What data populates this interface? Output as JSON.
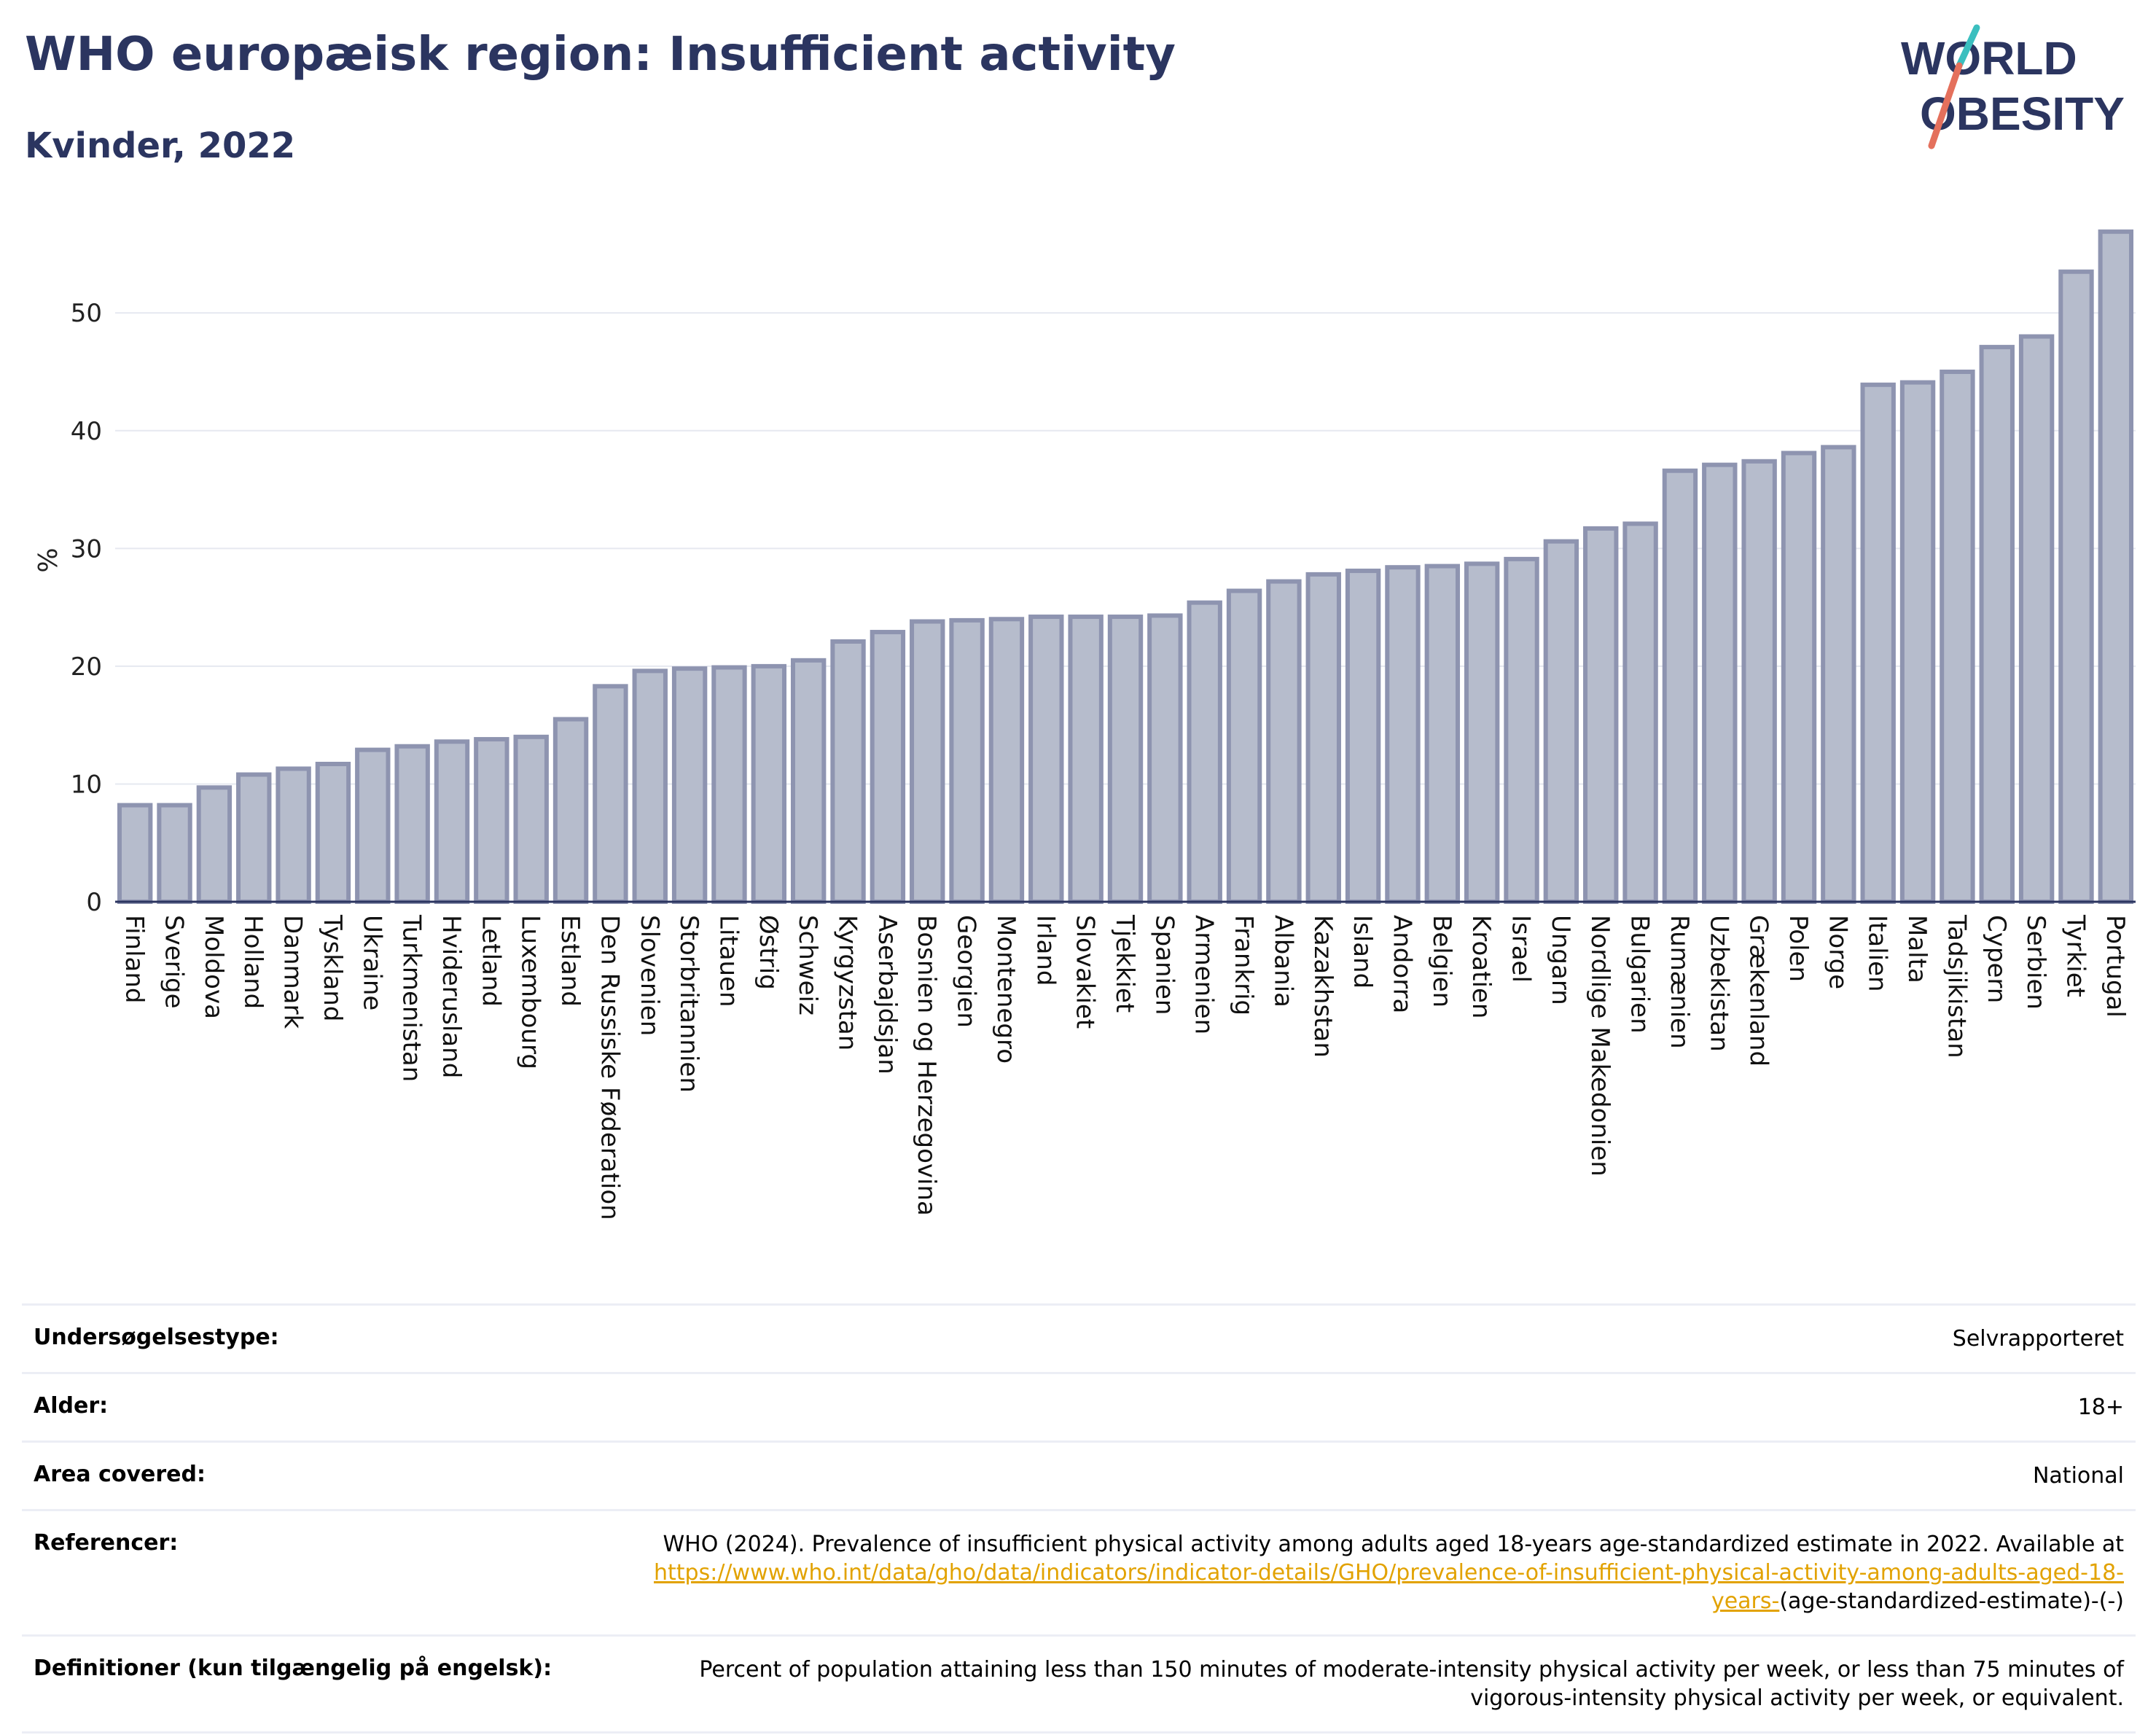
{
  "header": {
    "title": "WHO europæisk region: Insufficient activity",
    "subtitle": "Kvinder, 2022"
  },
  "logo": {
    "line1": "WORLD",
    "line2": "OBESITY"
  },
  "colors": {
    "bar_fill": "#b6bccc",
    "bar_stroke": "#8e94b0",
    "title": "#2b3560",
    "logo_teal": "#3bbfbf",
    "logo_coral": "#e4705c",
    "link": "#e2a200"
  },
  "chart_data": {
    "type": "bar",
    "ylabel": "%",
    "ylim": [
      0,
      58
    ],
    "yticks": [
      0,
      10,
      20,
      30,
      40,
      50
    ],
    "grid": true,
    "categories": [
      "Finland",
      "Sverige",
      "Moldova",
      "Holland",
      "Danmark",
      "Tyskland",
      "Ukraine",
      "Turkmenistan",
      "Hviderusland",
      "Letland",
      "Luxembourg",
      "Estland",
      "Den Russiske Føderation",
      "Slovenien",
      "Storbritannien",
      "Litauen",
      "Østrig",
      "Schweiz",
      "Kyrgyzstan",
      "Aserbajdsjan",
      "Bosnien og Herzegovina",
      "Georgien",
      "Montenegro",
      "Irland",
      "Slovakiet",
      "Tjekkiet",
      "Spanien",
      "Armenien",
      "Frankrig",
      "Albania",
      "Kazakhstan",
      "Island",
      "Andorra",
      "Belgien",
      "Kroatien",
      "Israel",
      "Ungarn",
      "Nordlige Makedonien",
      "Bulgarien",
      "Rumænien",
      "Uzbekistan",
      "Grækenland",
      "Polen",
      "Norge",
      "Italien",
      "Malta",
      "Tadsjikistan",
      "Cypern",
      "Serbien",
      "Tyrkiet",
      "Portugal"
    ],
    "values": [
      8.2,
      8.2,
      9.7,
      10.8,
      11.3,
      11.7,
      12.9,
      13.2,
      13.6,
      13.8,
      14.0,
      15.5,
      18.3,
      19.6,
      19.8,
      19.9,
      20.0,
      20.5,
      22.1,
      22.9,
      23.8,
      23.9,
      24.0,
      24.2,
      24.2,
      24.2,
      24.3,
      25.4,
      26.4,
      27.2,
      27.8,
      28.1,
      28.4,
      28.5,
      28.7,
      29.1,
      30.6,
      31.7,
      32.1,
      36.6,
      37.1,
      37.4,
      38.1,
      38.6,
      43.9,
      44.1,
      45.0,
      47.1,
      48.0,
      53.5,
      56.9
    ]
  },
  "meta": {
    "rows": [
      {
        "label": "Undersøgelsestype:",
        "value": "Selvrapporteret"
      },
      {
        "label": "Alder:",
        "value": "18+"
      },
      {
        "label": "Area covered:",
        "value": "National"
      },
      {
        "label": "Referencer:",
        "value_prefix": "WHO (2024). Prevalence of insufficient physical activity among adults aged 18-years age-standardized estimate in 2022. Available at",
        "link": "https://www.who.int/data/gho/data/indicators/indicator-details/GHO/prevalence-of-insufficient-physical-activity-among-adults-aged-18-years-",
        "value_suffix": "(age-standardized-estimate)-(-)"
      },
      {
        "label": "Definitioner (kun tilgængelig på engelsk):",
        "value": "Percent of population attaining less than 150 minutes of moderate-intensity physical activity per week, or less than 75 minutes of vigorous-intensity physical activity per week, or equivalent."
      }
    ]
  }
}
